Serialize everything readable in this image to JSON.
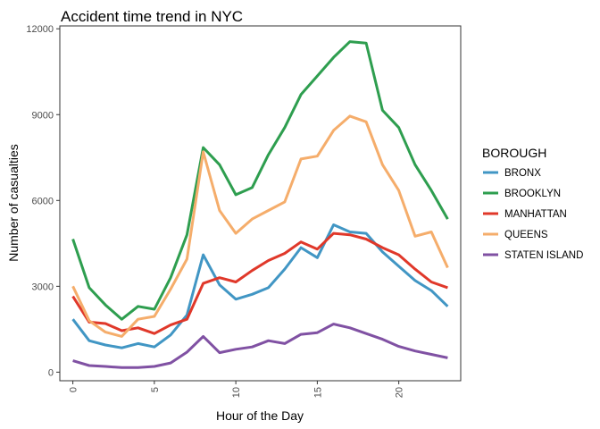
{
  "chart_data": {
    "type": "line",
    "title": "Accident time trend in NYC",
    "xlabel": "Hour of the Day",
    "ylabel": "Number of casualties",
    "xlim": [
      -0.8,
      23.8
    ],
    "ylim": [
      -300,
      12100
    ],
    "x_ticks": [
      0,
      5,
      10,
      15,
      20
    ],
    "x_tick_labels": [
      "0",
      "5",
      "10",
      "15",
      "20"
    ],
    "y_ticks": [
      0,
      3000,
      6000,
      9000,
      12000
    ],
    "y_tick_labels": [
      "0",
      "3000",
      "6000",
      "9000",
      "12000"
    ],
    "grid": false,
    "legend": {
      "title": "BOROUGH",
      "placement": "right"
    },
    "x": [
      0,
      1,
      2,
      3,
      4,
      5,
      6,
      7,
      8,
      9,
      10,
      11,
      12,
      13,
      14,
      15,
      16,
      17,
      18,
      19,
      20,
      21,
      22,
      23
    ],
    "series": [
      {
        "name": "BRONX",
        "color": "#4196c4",
        "values": [
          1850,
          1100,
          950,
          850,
          1000,
          880,
          1300,
          2000,
          4100,
          3050,
          2550,
          2720,
          2950,
          3600,
          4350,
          4000,
          5150,
          4900,
          4850,
          4200,
          3700,
          3200,
          2850,
          2300
        ]
      },
      {
        "name": "BROOKLYN",
        "color": "#2e9e4f",
        "values": [
          4650,
          2950,
          2350,
          1850,
          2300,
          2200,
          3300,
          4800,
          7850,
          7250,
          6200,
          6450,
          7600,
          8550,
          9700,
          10350,
          11000,
          11550,
          11500,
          9150,
          8550,
          7250,
          6350,
          5350
        ]
      },
      {
        "name": "MANHATTAN",
        "color": "#e0382a",
        "values": [
          2650,
          1750,
          1700,
          1450,
          1550,
          1350,
          1650,
          1850,
          3100,
          3300,
          3150,
          3550,
          3900,
          4150,
          4550,
          4300,
          4850,
          4800,
          4650,
          4350,
          4100,
          3600,
          3150,
          2950
        ]
      },
      {
        "name": "QUEENS",
        "color": "#f5ad6b",
        "values": [
          3000,
          1800,
          1400,
          1250,
          1850,
          1950,
          2900,
          3950,
          7700,
          5650,
          4850,
          5350,
          5650,
          5950,
          7450,
          7550,
          8450,
          8950,
          8750,
          7250,
          6350,
          4750,
          4900,
          3650
        ]
      },
      {
        "name": "STATEN ISLAND",
        "color": "#8051a3",
        "values": [
          400,
          230,
          200,
          160,
          160,
          200,
          320,
          700,
          1250,
          680,
          800,
          880,
          1100,
          1000,
          1320,
          1380,
          1680,
          1550,
          1350,
          1150,
          900,
          740,
          620,
          500
        ]
      }
    ]
  }
}
